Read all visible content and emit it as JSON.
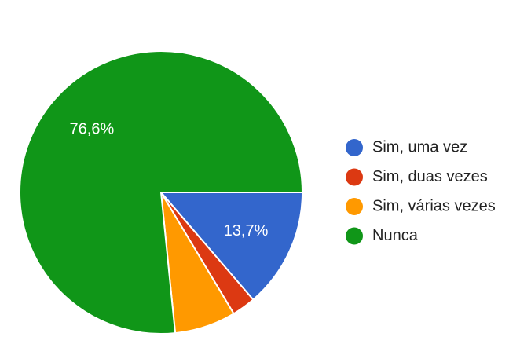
{
  "chart_data": {
    "type": "pie",
    "categories": [
      "Sim, uma vez",
      "Sim, duas vezes",
      "Sim, várias vezes",
      "Nunca"
    ],
    "values": [
      13.7,
      2.7,
      7.0,
      76.6
    ],
    "value_labels": [
      "13,7%",
      "",
      "",
      "76,6%"
    ],
    "colors": [
      "#3366cc",
      "#dc3912",
      "#ff9900",
      "#109618"
    ],
    "start_angle": "3 o'clock, clockwise",
    "legend_position": "right",
    "title": ""
  }
}
